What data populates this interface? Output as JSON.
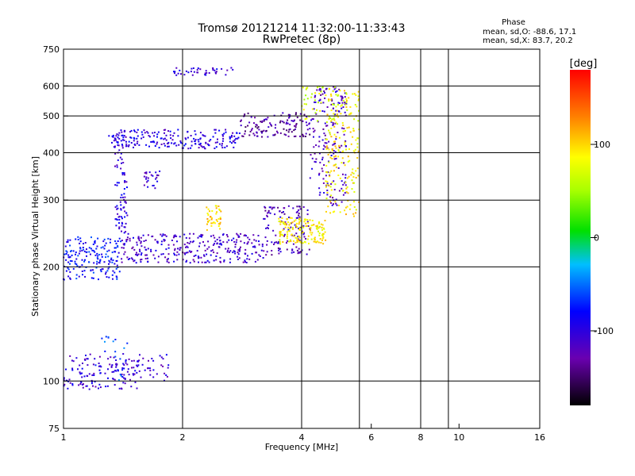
{
  "chart_data": {
    "type": "scatter",
    "title": "Tromsø 20121214 11:32:00-11:33:43",
    "subtitle": "RwPretec (8p)",
    "xlabel": "Frequency [MHz]",
    "ylabel": "Stationary phase Virtual Height [km]",
    "x_scale": "log",
    "y_scale": "log",
    "xlim": [
      1,
      16
    ],
    "ylim": [
      75,
      750
    ],
    "x_ticks": [
      1,
      2,
      4,
      6,
      8,
      10,
      16
    ],
    "x_tick_labels": [
      "1",
      "2",
      "4",
      "6",
      "8",
      "10",
      "16"
    ],
    "x_grid": [
      2,
      4,
      5.6,
      8,
      9.4
    ],
    "y_ticks": [
      75,
      100,
      200,
      300,
      400,
      500,
      600,
      750
    ],
    "y_tick_labels": [
      "75",
      "100",
      "200",
      "300",
      "400",
      "500",
      "600",
      "750"
    ],
    "y_grid": [
      100,
      200,
      300,
      400,
      500,
      600
    ],
    "grid": true,
    "stats_title": "Phase",
    "stats": [
      "mean, sd,O: -88.6, 17.1",
      "mean, sd,X: 83.7, 20.2"
    ],
    "colorbar": {
      "label": "[deg]",
      "ticks": [
        100,
        0,
        -100
      ],
      "tick_labels": [
        "100",
        "0",
        "-100"
      ],
      "range": [
        -180,
        180
      ]
    },
    "clusters": [
      {
        "name": "O-low",
        "x": [
          1.0,
          1.55
        ],
        "y": [
          95,
          118
        ],
        "phase": -105,
        "n": 140
      },
      {
        "name": "O-low-2",
        "x": [
          1.55,
          1.85
        ],
        "y": [
          100,
          118
        ],
        "phase": -105,
        "n": 30
      },
      {
        "name": "low-cyan",
        "x": [
          1.2,
          1.45
        ],
        "y": [
          100,
          135
        ],
        "phase": -60,
        "n": 20
      },
      {
        "name": "O-F1-left",
        "x": [
          1.0,
          1.4
        ],
        "y": [
          185,
          240
        ],
        "phase": -80,
        "n": 180
      },
      {
        "name": "O-F1-mid",
        "x": [
          1.4,
          3.2
        ],
        "y": [
          205,
          245
        ],
        "phase": -110,
        "n": 300
      },
      {
        "name": "O-F1-curve",
        "x": [
          3.2,
          4.2
        ],
        "y": [
          215,
          290
        ],
        "phase": -120,
        "n": 120
      },
      {
        "name": "O-F2",
        "x": [
          4.2,
          5.2
        ],
        "y": [
          290,
          600
        ],
        "phase": -115,
        "n": 180
      },
      {
        "name": "O-col",
        "x": [
          1.35,
          1.45
        ],
        "y": [
          240,
          460
        ],
        "phase": -100,
        "n": 90
      },
      {
        "name": "O-band",
        "x": [
          1.3,
          2.8
        ],
        "y": [
          410,
          460
        ],
        "phase": -100,
        "n": 200
      },
      {
        "name": "O-band-up",
        "x": [
          2.8,
          4.2
        ],
        "y": [
          440,
          510
        ],
        "phase": -130,
        "n": 120
      },
      {
        "name": "O-blob",
        "x": [
          1.6,
          1.75
        ],
        "y": [
          320,
          360
        ],
        "phase": -110,
        "n": 25
      },
      {
        "name": "O-top",
        "x": [
          1.9,
          2.7
        ],
        "y": [
          640,
          670
        ],
        "phase": -100,
        "n": 40
      },
      {
        "name": "X-F1",
        "x": [
          3.5,
          4.6
        ],
        "y": [
          230,
          270
        ],
        "phase": 90,
        "n": 150
      },
      {
        "name": "X-F2",
        "x": [
          4.6,
          5.6
        ],
        "y": [
          270,
          600
        ],
        "phase": 90,
        "n": 180
      },
      {
        "name": "X-patch",
        "x": [
          2.3,
          2.5
        ],
        "y": [
          250,
          290
        ],
        "phase": 100,
        "n": 40
      },
      {
        "name": "X-top",
        "x": [
          4.0,
          5.6
        ],
        "y": [
          480,
          600
        ],
        "phase": 70,
        "n": 60
      }
    ]
  }
}
